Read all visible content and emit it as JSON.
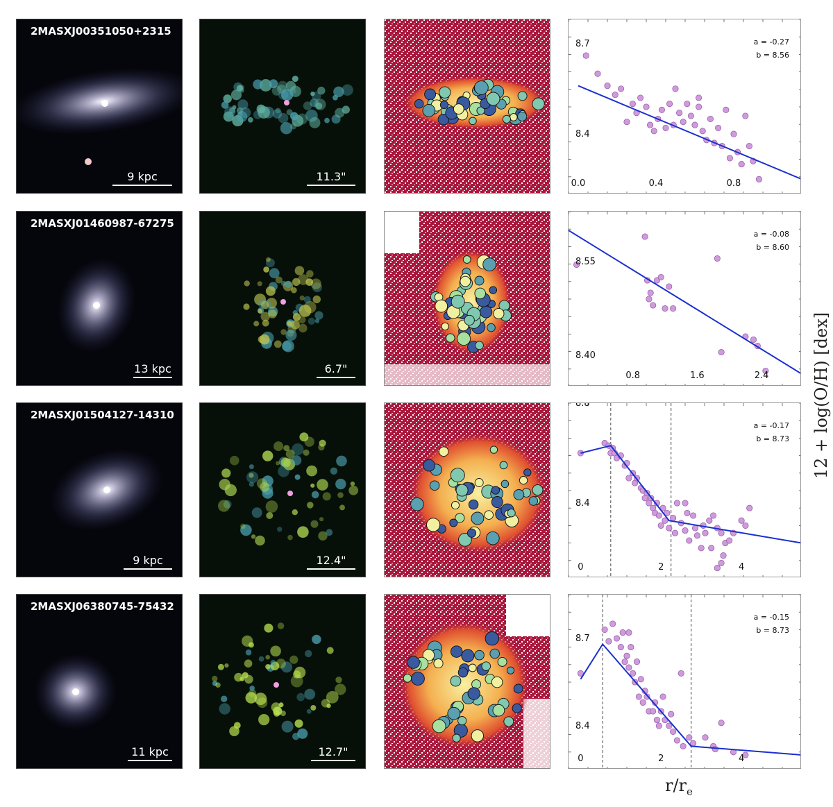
{
  "galaxies": [
    {
      "name": "2MASXJ00351050+2315",
      "phys_scale": "9 kpc",
      "ang_scale": "11.3\"",
      "a": "a = -0.27",
      "b": "b = 8.56"
    },
    {
      "name": "2MASXJ01460987-67275",
      "phys_scale": "13 kpc",
      "ang_scale": "6.7\"",
      "a": "a = -0.08",
      "b": "b = 8.60"
    },
    {
      "name": "2MASXJ01504127-14310",
      "phys_scale": "9 kpc",
      "ang_scale": "12.4\"",
      "a": "a = -0.17",
      "b": "b = 8.73"
    },
    {
      "name": "2MASXJ06380745-75432",
      "phys_scale": "11 kpc",
      "ang_scale": "12.7\"",
      "a": "a = -0.15",
      "b": "b = 8.73"
    }
  ],
  "y_axis_label": "12 + log(O/H) [dex]",
  "x_axis_label": "r/r",
  "x_axis_label_sub": "e",
  "chart_data": [
    {
      "type": "scatter",
      "xlim": [
        -0.05,
        1.15
      ],
      "ylim": [
        8.2,
        8.78
      ],
      "xticks": [
        "0.0",
        "0.4",
        "0.8"
      ],
      "xtick_values": [
        0.0,
        0.4,
        0.8
      ],
      "yticks": [
        "8.7",
        "8.4"
      ],
      "ytick_values": [
        8.7,
        8.4
      ],
      "points": [
        [
          0.04,
          8.66
        ],
        [
          0.1,
          8.6
        ],
        [
          0.15,
          8.56
        ],
        [
          0.19,
          8.53
        ],
        [
          0.22,
          8.55
        ],
        [
          0.25,
          8.44
        ],
        [
          0.28,
          8.5
        ],
        [
          0.3,
          8.47
        ],
        [
          0.32,
          8.52
        ],
        [
          0.35,
          8.49
        ],
        [
          0.37,
          8.43
        ],
        [
          0.39,
          8.41
        ],
        [
          0.41,
          8.45
        ],
        [
          0.43,
          8.48
        ],
        [
          0.45,
          8.42
        ],
        [
          0.47,
          8.5
        ],
        [
          0.49,
          8.43
        ],
        [
          0.5,
          8.55
        ],
        [
          0.52,
          8.47
        ],
        [
          0.54,
          8.44
        ],
        [
          0.56,
          8.5
        ],
        [
          0.58,
          8.46
        ],
        [
          0.6,
          8.43
        ],
        [
          0.62,
          8.49
        ],
        [
          0.64,
          8.41
        ],
        [
          0.66,
          8.38
        ],
        [
          0.68,
          8.45
        ],
        [
          0.7,
          8.37
        ],
        [
          0.72,
          8.42
        ],
        [
          0.74,
          8.36
        ],
        [
          0.76,
          8.48
        ],
        [
          0.78,
          8.32
        ],
        [
          0.8,
          8.4
        ],
        [
          0.82,
          8.34
        ],
        [
          0.84,
          8.3
        ],
        [
          0.86,
          8.46
        ],
        [
          0.88,
          8.36
        ],
        [
          0.9,
          8.31
        ],
        [
          0.93,
          8.25
        ],
        [
          0.62,
          8.52
        ]
      ],
      "fit": [
        [
          0.0,
          8.56
        ],
        [
          1.15,
          8.25
        ]
      ],
      "breaks": []
    },
    {
      "type": "scatter",
      "xlim": [
        0.0,
        2.9
      ],
      "ylim": [
        8.35,
        8.63
      ],
      "xticks": [
        "0.8",
        "1.6",
        "2.4"
      ],
      "xtick_values": [
        0.8,
        1.6,
        2.4
      ],
      "yticks": [
        "8.55",
        "8.40"
      ],
      "ytick_values": [
        8.55,
        8.4
      ],
      "points": [
        [
          0.1,
          8.545
        ],
        [
          0.95,
          8.59
        ],
        [
          0.98,
          8.52
        ],
        [
          1.02,
          8.5
        ],
        [
          1.05,
          8.48
        ],
        [
          1.0,
          8.49
        ],
        [
          1.1,
          8.52
        ],
        [
          1.15,
          8.525
        ],
        [
          1.2,
          8.475
        ],
        [
          1.25,
          8.51
        ],
        [
          1.3,
          8.475
        ],
        [
          1.85,
          8.555
        ],
        [
          1.9,
          8.405
        ],
        [
          2.2,
          8.43
        ],
        [
          2.3,
          8.425
        ],
        [
          2.35,
          8.415
        ],
        [
          2.45,
          8.375
        ]
      ],
      "fit": [
        [
          0.0,
          8.6
        ],
        [
          2.9,
          8.37
        ]
      ],
      "breaks": []
    },
    {
      "type": "scatter",
      "xlim": [
        -0.3,
        5.5
      ],
      "ylim": [
        8.1,
        8.8
      ],
      "xticks": [
        "0",
        "2",
        "4"
      ],
      "xtick_values": [
        0,
        2,
        4
      ],
      "yticks": [
        "8.8",
        "8.4"
      ],
      "ytick_values": [
        8.8,
        8.4
      ],
      "points": [
        [
          0.0,
          8.6
        ],
        [
          0.6,
          8.64
        ],
        [
          0.7,
          8.63
        ],
        [
          0.75,
          8.6
        ],
        [
          0.8,
          8.62
        ],
        [
          0.85,
          8.6
        ],
        [
          0.9,
          8.58
        ],
        [
          1.0,
          8.59
        ],
        [
          1.1,
          8.55
        ],
        [
          1.15,
          8.56
        ],
        [
          1.2,
          8.5
        ],
        [
          1.3,
          8.52
        ],
        [
          1.35,
          8.48
        ],
        [
          1.4,
          8.5
        ],
        [
          1.5,
          8.46
        ],
        [
          1.55,
          8.45
        ],
        [
          1.6,
          8.42
        ],
        [
          1.65,
          8.44
        ],
        [
          1.7,
          8.4
        ],
        [
          1.75,
          8.42
        ],
        [
          1.8,
          8.38
        ],
        [
          1.85,
          8.36
        ],
        [
          1.9,
          8.4
        ],
        [
          1.95,
          8.35
        ],
        [
          2.0,
          8.31
        ],
        [
          2.05,
          8.38
        ],
        [
          2.1,
          8.33
        ],
        [
          2.15,
          8.36
        ],
        [
          2.2,
          8.3
        ],
        [
          2.3,
          8.34
        ],
        [
          2.35,
          8.28
        ],
        [
          2.4,
          8.4
        ],
        [
          2.5,
          8.32
        ],
        [
          2.6,
          8.29
        ],
        [
          2.65,
          8.36
        ],
        [
          2.7,
          8.25
        ],
        [
          2.8,
          8.35
        ],
        [
          2.85,
          8.3
        ],
        [
          2.9,
          8.27
        ],
        [
          3.0,
          8.22
        ],
        [
          3.05,
          8.31
        ],
        [
          3.1,
          8.28
        ],
        [
          3.2,
          8.33
        ],
        [
          3.25,
          8.22
        ],
        [
          3.3,
          8.35
        ],
        [
          3.4,
          8.3
        ],
        [
          3.5,
          8.28
        ],
        [
          3.55,
          8.19
        ],
        [
          3.6,
          8.24
        ],
        [
          3.7,
          8.25
        ],
        [
          3.8,
          8.28
        ],
        [
          4.0,
          8.33
        ],
        [
          4.1,
          8.31
        ],
        [
          4.2,
          8.38
        ],
        [
          3.4,
          8.14
        ],
        [
          3.5,
          8.16
        ],
        [
          2.6,
          8.4
        ]
      ],
      "fit": [
        [
          0.0,
          8.6
        ],
        [
          0.75,
          8.63
        ],
        [
          2.2,
          8.33
        ],
        [
          5.5,
          8.24
        ]
      ],
      "breaks": [
        0.75,
        2.25
      ]
    },
    {
      "type": "scatter",
      "xlim": [
        -0.3,
        5.5
      ],
      "ylim": [
        8.25,
        8.85
      ],
      "xticks": [
        "0",
        "2",
        "4"
      ],
      "xtick_values": [
        0,
        2,
        4
      ],
      "yticks": [
        "8.7",
        "8.4"
      ],
      "ytick_values": [
        8.7,
        8.4
      ],
      "points": [
        [
          0.0,
          8.58
        ],
        [
          0.6,
          8.73
        ],
        [
          0.7,
          8.69
        ],
        [
          0.8,
          8.75
        ],
        [
          0.9,
          8.7
        ],
        [
          1.0,
          8.67
        ],
        [
          1.05,
          8.72
        ],
        [
          1.1,
          8.62
        ],
        [
          1.15,
          8.64
        ],
        [
          1.2,
          8.6
        ],
        [
          1.25,
          8.67
        ],
        [
          1.3,
          8.58
        ],
        [
          1.35,
          8.55
        ],
        [
          1.4,
          8.62
        ],
        [
          1.45,
          8.5
        ],
        [
          1.5,
          8.56
        ],
        [
          1.55,
          8.48
        ],
        [
          1.6,
          8.52
        ],
        [
          1.65,
          8.5
        ],
        [
          1.7,
          8.45
        ],
        [
          1.8,
          8.45
        ],
        [
          1.85,
          8.48
        ],
        [
          1.9,
          8.42
        ],
        [
          1.95,
          8.4
        ],
        [
          2.0,
          8.45
        ],
        [
          2.05,
          8.5
        ],
        [
          2.1,
          8.42
        ],
        [
          2.2,
          8.4
        ],
        [
          2.25,
          8.44
        ],
        [
          2.3,
          8.38
        ],
        [
          2.4,
          8.35
        ],
        [
          2.5,
          8.58
        ],
        [
          2.55,
          8.33
        ],
        [
          2.7,
          8.36
        ],
        [
          2.8,
          8.34
        ],
        [
          3.1,
          8.36
        ],
        [
          3.3,
          8.33
        ],
        [
          3.35,
          8.32
        ],
        [
          3.5,
          8.41
        ],
        [
          3.8,
          8.31
        ],
        [
          4.1,
          8.3
        ],
        [
          1.2,
          8.72
        ]
      ],
      "fit": [
        [
          0.0,
          8.56
        ],
        [
          0.55,
          8.68
        ],
        [
          2.75,
          8.33
        ],
        [
          5.5,
          8.3
        ]
      ],
      "breaks": [
        0.55,
        2.75
      ]
    }
  ]
}
